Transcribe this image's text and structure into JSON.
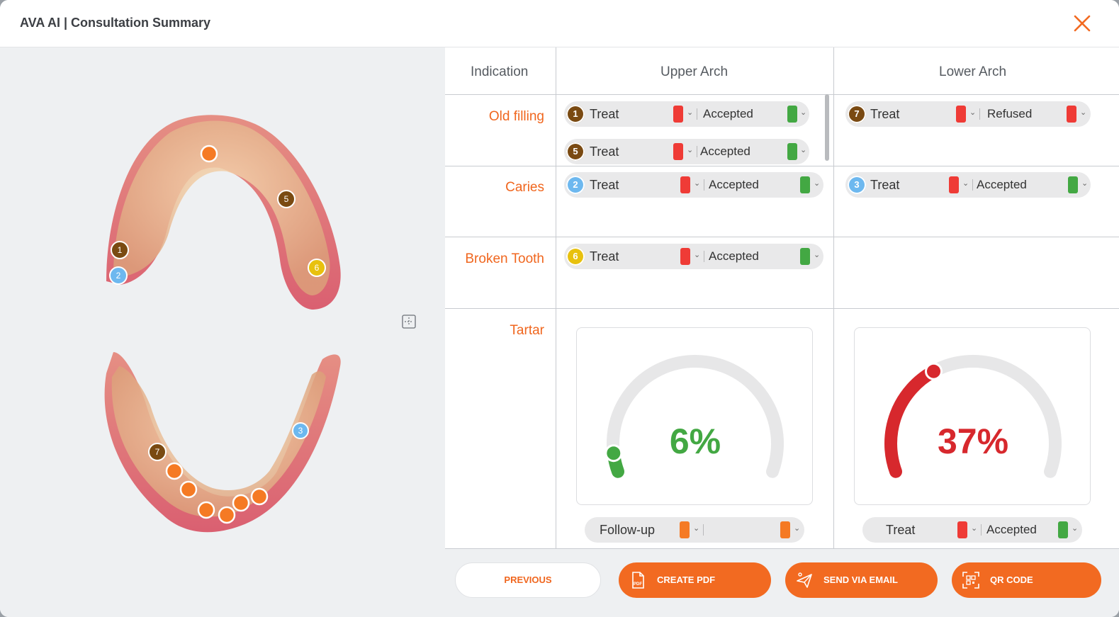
{
  "window": {
    "title": "AVA AI | Consultation Summary"
  },
  "colors": {
    "accent": "#f26a21",
    "red": "#ef3b36",
    "green": "#43a843",
    "orange": "#f57a24"
  },
  "table": {
    "headers": {
      "indication": "Indication",
      "upper": "Upper Arch",
      "lower": "Lower Arch"
    },
    "rows": {
      "old_filling": {
        "label": "Old filling",
        "upper": [
          {
            "badge": "1",
            "badge_color": "#7a4a12",
            "action": "Treat",
            "status": "Accepted"
          },
          {
            "badge": "5",
            "badge_color": "#7a4a12",
            "action": "Treat",
            "status": "Accepted"
          }
        ],
        "lower": [
          {
            "badge": "7",
            "badge_color": "#7a4a12",
            "action": "Treat",
            "status": "Refused"
          }
        ]
      },
      "caries": {
        "label": "Caries",
        "upper": [
          {
            "badge": "2",
            "badge_color": "#6db8ef",
            "action": "Treat",
            "status": "Accepted"
          }
        ],
        "lower": [
          {
            "badge": "3",
            "badge_color": "#6db8ef",
            "action": "Treat",
            "status": "Accepted"
          }
        ]
      },
      "broken_tooth": {
        "label": "Broken Tooth",
        "upper": [
          {
            "badge": "6",
            "badge_color": "#e8c10e",
            "action": "Treat",
            "status": "Accepted"
          }
        ]
      },
      "tartar": {
        "label": "Tartar",
        "upper": {
          "percent": 6,
          "value_label": "6%",
          "color": "#43a843",
          "action": "Follow-up",
          "status": ""
        },
        "lower": {
          "percent": 37,
          "value_label": "37%",
          "color": "#d7282d",
          "action": "Treat",
          "status": "Accepted"
        }
      }
    }
  },
  "viewer": {
    "markers": [
      {
        "label": "1",
        "color": "#7a4a12"
      },
      {
        "label": "2",
        "color": "#6db8ef"
      },
      {
        "label": "5",
        "color": "#7a4a12"
      },
      {
        "label": "6",
        "color": "#e8c10e"
      },
      {
        "label": "3",
        "color": "#6db8ef"
      },
      {
        "label": "7",
        "color": "#7a4a12"
      }
    ]
  },
  "footer": {
    "previous": "PREVIOUS",
    "create_pdf": "CREATE PDF",
    "send_email": "SEND VIA EMAIL",
    "qr_code": "QR CODE",
    "pdf_icon_text": "PDF"
  }
}
